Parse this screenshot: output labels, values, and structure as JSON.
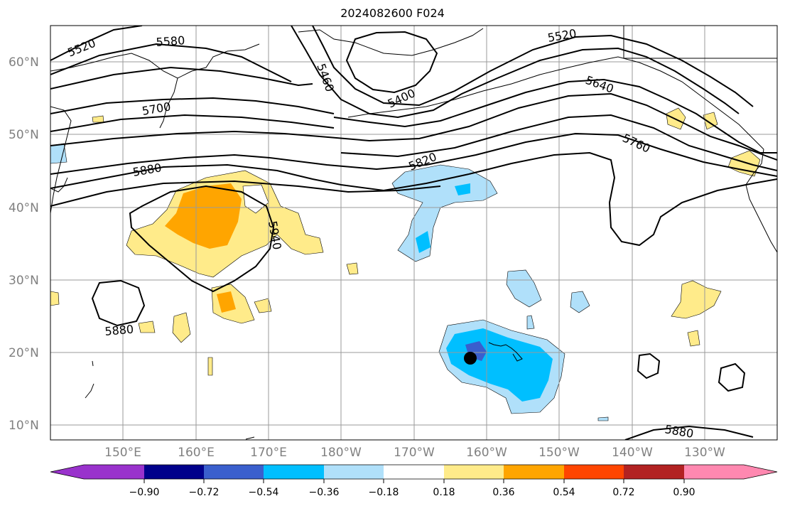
{
  "title": "2024082600 F024",
  "latitude_labels": [
    "10°N",
    "20°N",
    "30°N",
    "40°N",
    "50°N",
    "60°N"
  ],
  "longitude_labels": [
    "150°E",
    "160°E",
    "170°E",
    "180°W",
    "170°W",
    "160°W",
    "150°W",
    "140°W",
    "130°W"
  ],
  "contour_labels": [
    "5520",
    "5580",
    "5700",
    "5880",
    "5460",
    "5400",
    "5520",
    "5640",
    "5760",
    "5820",
    "5940",
    "5880",
    "5880"
  ],
  "colorbar": {
    "ticks": [
      "−0.90",
      "−0.72",
      "−0.54",
      "−0.36",
      "−0.18",
      "0.18",
      "0.36",
      "0.54",
      "0.72",
      "0.90"
    ],
    "colors": [
      "#9932CC",
      "#00008B",
      "#3A5FCD",
      "#00BFFF",
      "#B0E0FA",
      "#FFFFFF",
      "#FFEB8A",
      "#FFA500",
      "#FF4500",
      "#B22222",
      "#FF88B0"
    ]
  },
  "marker": "storm-center"
}
